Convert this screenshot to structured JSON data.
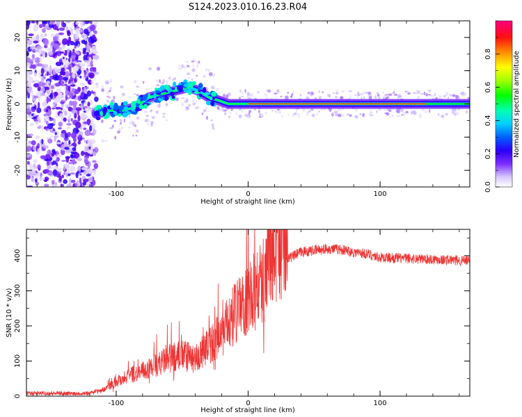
{
  "title": "S124.2023.010.16.23.R04",
  "chart_data": [
    {
      "type": "heatmap",
      "xlabel": "Height of straight line (km)",
      "ylabel": "Frequency (Hz)",
      "xlim": [
        -168,
        168
      ],
      "ylim": [
        -25,
        25
      ],
      "x_ticks": [
        -100,
        0,
        100
      ],
      "y_ticks": [
        -20,
        -10,
        0,
        10,
        20
      ],
      "colorbar": {
        "label": "Normalized spectral amplitude",
        "range": [
          0,
          1
        ],
        "ticks": [
          0.0,
          0.2,
          0.4,
          0.6,
          0.8
        ]
      },
      "ridge": {
        "x": [
          -115,
          -105,
          -95,
          -85,
          -75,
          -65,
          -55,
          -45,
          -38,
          -30,
          -22,
          -15,
          -5,
          10,
          30,
          60,
          100,
          168
        ],
        "frequency_hz": [
          -3,
          -2,
          -2,
          -1,
          2,
          3,
          4,
          5,
          4,
          2,
          1,
          0,
          0,
          0,
          0,
          0,
          0,
          0
        ]
      },
      "noise_region_x": [
        -168,
        -115
      ],
      "grid": false
    },
    {
      "type": "line",
      "xlabel": "Height of straight line (km)",
      "ylabel": "SNR (10 * v/v)",
      "xlim": [
        -168,
        168
      ],
      "ylim": [
        0,
        475
      ],
      "x_ticks": [
        -100,
        0,
        100
      ],
      "y_ticks": [
        0,
        100,
        200,
        300,
        400
      ],
      "series": [
        {
          "color": "#ee3333",
          "envelope_x": [
            -168,
            -120,
            -110,
            -100,
            -90,
            -80,
            -70,
            -60,
            -50,
            -40,
            -30,
            -20,
            -10,
            0,
            10,
            20,
            30,
            40,
            50,
            60,
            70,
            80,
            90,
            100,
            120,
            140,
            168
          ],
          "values": [
            8,
            8,
            15,
            35,
            50,
            60,
            75,
            90,
            100,
            90,
            120,
            150,
            200,
            235,
            270,
            340,
            390,
            410,
            415,
            420,
            418,
            410,
            405,
            395,
            392,
            390,
            385
          ]
        }
      ],
      "grid": false
    }
  ]
}
